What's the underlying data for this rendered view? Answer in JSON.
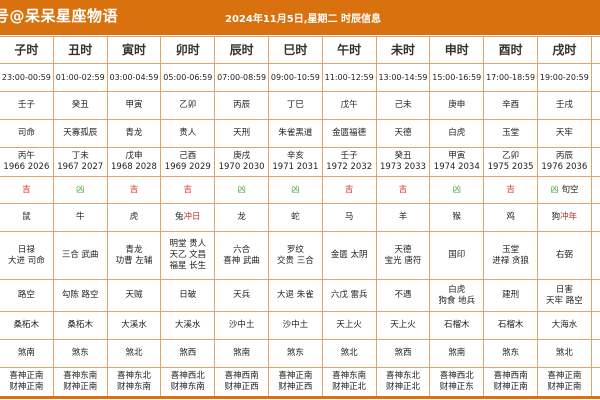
{
  "header": {
    "site": "号@呆呆星座物语",
    "title": "2024年11月5日,星期二 时辰信息"
  },
  "colors": {
    "header_bg": "#d9720e",
    "good": "#d9302c",
    "bad": "#49a844",
    "border": "#e2a466"
  },
  "columns": [
    {
      "name": "子时",
      "time": "23:00-00:59",
      "ganzhi": "壬子",
      "god": "司命",
      "year": [
        "丙午",
        "1966 2026"
      ],
      "luck": "吉",
      "luck_type": "good",
      "luck_extra": "",
      "zodiac": "鼠",
      "clash": "",
      "stars": [
        "日禄",
        "大进 司命"
      ],
      "bad": [
        "路空"
      ],
      "nayin": "桑柘木",
      "sha": "煞南",
      "dir": [
        "喜神正南",
        "财神正南"
      ]
    },
    {
      "name": "丑时",
      "time": "01:00-02:59",
      "ganzhi": "癸丑",
      "god": "天寡孤辰",
      "year": [
        "丁未",
        "1967 2027"
      ],
      "luck": "凶",
      "luck_type": "bad",
      "luck_extra": "",
      "zodiac": "牛",
      "clash": "",
      "stars": [
        "三合 武曲"
      ],
      "bad": [
        "勾陈 路空"
      ],
      "nayin": "桑柘木",
      "sha": "煞东",
      "dir": [
        "喜神东南",
        "财神正南"
      ]
    },
    {
      "name": "寅时",
      "time": "03:00-04:59",
      "ganzhi": "甲寅",
      "god": "青龙",
      "year": [
        "戊申",
        "1968 2028"
      ],
      "luck": "吉",
      "luck_type": "good",
      "luck_extra": "",
      "zodiac": "虎",
      "clash": "",
      "stars": [
        "青龙",
        "功曹 左辅"
      ],
      "bad": [
        "天贼"
      ],
      "nayin": "大溪水",
      "sha": "煞北",
      "dir": [
        "喜神东北",
        "财神东南"
      ]
    },
    {
      "name": "卯时",
      "time": "05:00-06:59",
      "ganzhi": "乙卯",
      "god": "贵人",
      "year": [
        "己酉",
        "1969 2029"
      ],
      "luck": "吉",
      "luck_type": "good",
      "luck_extra": "",
      "zodiac": "兔",
      "clash": "冲日",
      "stars": [
        "明堂 贵人",
        "天乙 文昌",
        "福星 长生"
      ],
      "bad": [
        "日破"
      ],
      "nayin": "大溪水",
      "sha": "煞西",
      "dir": [
        "喜神西北",
        "财神东南"
      ]
    },
    {
      "name": "辰时",
      "time": "07:00-08:59",
      "ganzhi": "丙辰",
      "god": "天刑",
      "year": [
        "庚戌",
        "1970 2030"
      ],
      "luck": "凶",
      "luck_type": "bad",
      "luck_extra": "",
      "zodiac": "龙",
      "clash": "",
      "stars": [
        "六合",
        "喜神 武曲"
      ],
      "bad": [
        "天兵"
      ],
      "nayin": "沙中土",
      "sha": "煞南",
      "dir": [
        "喜神西南",
        "财神正西"
      ]
    },
    {
      "name": "巳时",
      "time": "09:00-10:59",
      "ganzhi": "丁巳",
      "god": "朱雀黑道",
      "year": [
        "辛亥",
        "1971 2031"
      ],
      "luck": "凶",
      "luck_type": "bad",
      "luck_extra": "",
      "zodiac": "蛇",
      "clash": "",
      "stars": [
        "罗纹",
        "交贵 三合"
      ],
      "bad": [
        "大退 朱雀"
      ],
      "nayin": "沙中土",
      "sha": "煞东",
      "dir": [
        "喜神正南",
        "财神正西"
      ]
    },
    {
      "name": "午时",
      "time": "11:00-12:59",
      "ganzhi": "戊午",
      "god": "金匮福德",
      "year": [
        "壬子",
        "1972 2032"
      ],
      "luck": "吉",
      "luck_type": "good",
      "luck_extra": "",
      "zodiac": "马",
      "clash": "",
      "stars": [
        "金匮 太阴"
      ],
      "bad": [
        "六戊 雷兵"
      ],
      "nayin": "天上火",
      "sha": "煞北",
      "dir": [
        "喜神东南",
        "财神正北"
      ]
    },
    {
      "name": "未时",
      "time": "13:00-14:59",
      "ganzhi": "己未",
      "god": "天德",
      "year": [
        "癸丑",
        "1973 2033"
      ],
      "luck": "吉",
      "luck_type": "good",
      "luck_extra": "",
      "zodiac": "羊",
      "clash": "",
      "stars": [
        "天德",
        "宝光 唐符"
      ],
      "bad": [
        "不遇"
      ],
      "nayin": "天上火",
      "sha": "煞西",
      "dir": [
        "喜神东北",
        "财神正北"
      ]
    },
    {
      "name": "申时",
      "time": "15:00-16:59",
      "ganzhi": "庚申",
      "god": "白虎",
      "year": [
        "甲寅",
        "1974 2034"
      ],
      "luck": "凶",
      "luck_type": "bad",
      "luck_extra": "",
      "zodiac": "猴",
      "clash": "",
      "stars": [
        "国印"
      ],
      "bad": [
        "白虎",
        "狗食 地兵"
      ],
      "nayin": "石榴木",
      "sha": "煞南",
      "dir": [
        "喜神西北",
        "财神正东"
      ]
    },
    {
      "name": "酉时",
      "time": "17:00-18:59",
      "ganzhi": "辛酉",
      "god": "玉堂",
      "year": [
        "乙卯",
        "1975 2035"
      ],
      "luck": "吉",
      "luck_type": "good",
      "luck_extra": "",
      "zodiac": "鸡",
      "clash": "",
      "stars": [
        "玉堂",
        "进禄 贪狼"
      ],
      "bad": [
        "建刑"
      ],
      "nayin": "石榴木",
      "sha": "煞东",
      "dir": [
        "喜神西南",
        "财神正南"
      ]
    },
    {
      "name": "戌时",
      "time": "19:00-20:59",
      "ganzhi": "壬戌",
      "god": "天牢",
      "year": [
        "丙辰",
        "1976 2036"
      ],
      "luck": "凶",
      "luck_type": "bad",
      "luck_extra": "旬空",
      "zodiac": "狗",
      "clash": "冲年",
      "stars": [
        "右弼"
      ],
      "bad": [
        "日害",
        "天牢 路空"
      ],
      "nayin": "大海水",
      "sha": "煞北",
      "dir": [
        "喜神正南",
        "财神正南"
      ]
    }
  ]
}
